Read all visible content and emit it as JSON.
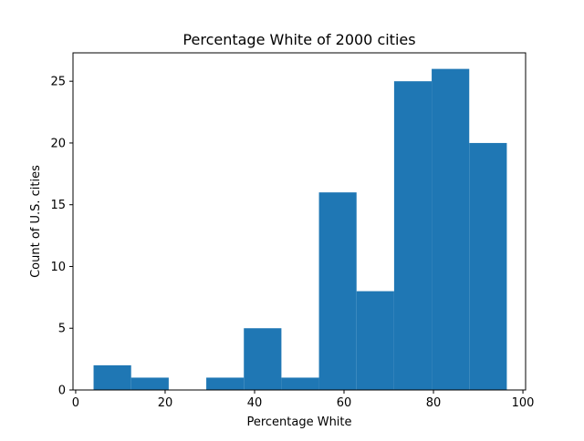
{
  "chart_data": {
    "type": "bar",
    "title": "Percentage White of 2000 cities",
    "xlabel": "Percentage White",
    "ylabel": "Count of U.S. cities",
    "xlim": [
      -0.6,
      100.6
    ],
    "ylim": [
      0,
      27.3
    ],
    "xticks": [
      0,
      20,
      40,
      60,
      80,
      100
    ],
    "yticks": [
      0,
      5,
      10,
      15,
      20,
      25
    ],
    "bin_edges": [
      4.0,
      12.4,
      20.8,
      29.2,
      37.6,
      46.0,
      54.4,
      62.8,
      71.2,
      79.6,
      88.0,
      96.4
    ],
    "counts": [
      2,
      1,
      0,
      1,
      5,
      1,
      16,
      8,
      25,
      26,
      20
    ],
    "bar_color": "#1f77b4",
    "grid": false
  }
}
